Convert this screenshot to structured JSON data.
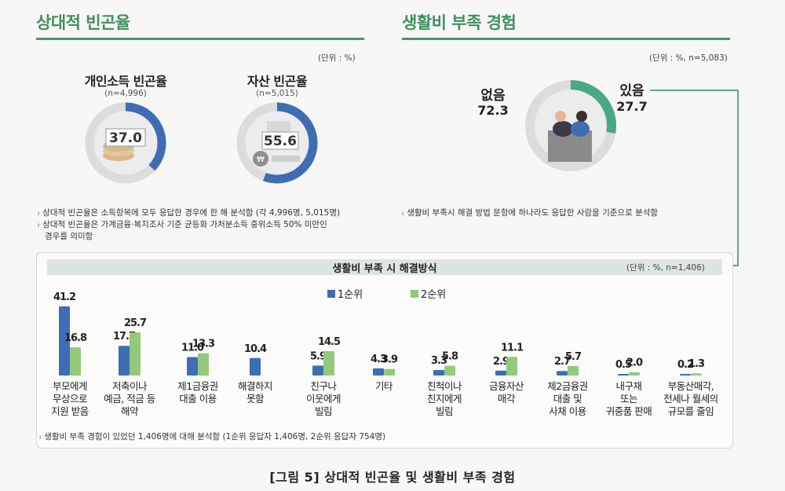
{
  "left": {
    "title": "상대적 빈곤율",
    "unit": "(단위 : %)",
    "donuts": [
      {
        "title": "개인소득 빈곤율",
        "n": "(n=4,996)",
        "value_label": "37.0",
        "value": 37.0
      },
      {
        "title": "자산 빈곤율",
        "n": "(n=5,015)",
        "value_label": "55.6",
        "value": 55.6
      }
    ],
    "notes": [
      "상대적 빈곤율은 소득항목에 모두 응답한 경우에 한 해 분석함 (각 4,996명, 5,015명)",
      "상대적 빈곤율은 가계금융·복지조사 기준 균등화 가처분소득 중위소득 50% 미만인",
      "경우를 의미함"
    ]
  },
  "right": {
    "title": "생활비 부족 경험",
    "unit": "(단위 : %, n=5,083)",
    "no_label": "없음",
    "no_value": "72.3",
    "yes_label": "있음",
    "yes_value": "27.7",
    "note": "생활비 부족시 해결 방법 문항에 하나라도 응답한 사람을 기준으로 분석함"
  },
  "panel": {
    "title": "생활비 부족 시 해결방식",
    "unit": "(단위 : %, n=1,406)",
    "note": "생활비 부족 경험이 있었던 1,406명에 대해 분석함 (1순위 응답자 1,406명, 2순위 응답자 754명)"
  },
  "caption": "[그림 5] 상대적 빈곤율 및 생활비 부족 경험",
  "colors": {
    "green_title": "#3e8f5e",
    "rank1": "#3e6db3",
    "rank2": "#92c97b",
    "donut_track": "#dcdcdc",
    "donut_blue": "#3e6db3",
    "donut_green": "#4aa882"
  },
  "chart_data": {
    "type": "bar",
    "ylim": [
      0,
      45
    ],
    "legend_position": "top",
    "categories": [
      "부모에게\n무상으로\n지원 받음",
      "저축이나\n예금, 적금 등\n해약",
      "제1금융권\n대출 이용",
      "해결하지\n못함",
      "친구나\n이웃에게\n빌림",
      "기타",
      "친척이나\n친지에게\n빌림",
      "금융자산\n매각",
      "제2금융권\n대출 및\n사채 이용",
      "내구재\n또는\n귀중품 판매",
      "부동산매각,\n전세나 월세의\n규모를 줄임"
    ],
    "series": [
      {
        "name": "1순위",
        "values": [
          41.2,
          17.7,
          11.0,
          10.4,
          5.9,
          4.3,
          3.3,
          2.9,
          2.7,
          0.5,
          0.2
        ]
      },
      {
        "name": "2순위",
        "values": [
          16.8,
          25.7,
          13.3,
          null,
          14.5,
          3.9,
          5.8,
          11.1,
          5.7,
          2.0,
          1.3
        ]
      }
    ]
  }
}
